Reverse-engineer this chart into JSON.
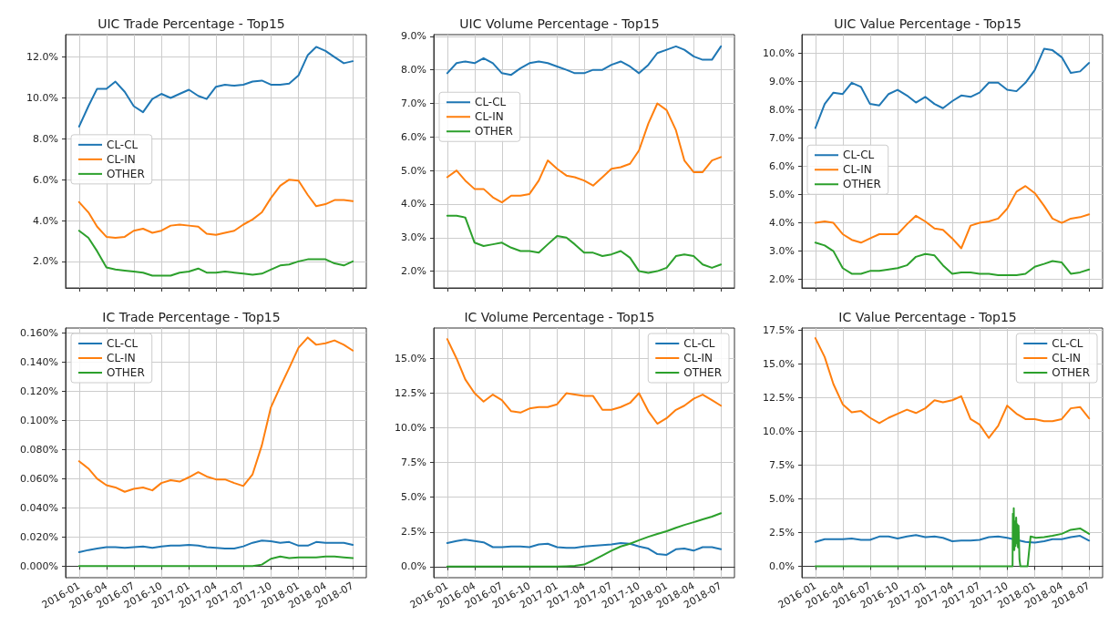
{
  "chart_data": [
    {
      "type": "line",
      "title": "UIC Trade Percentage - Top15",
      "x": [
        "2016-01",
        "2016-02",
        "2016-03",
        "2016-04",
        "2016-05",
        "2016-06",
        "2016-07",
        "2016-08",
        "2016-09",
        "2016-10",
        "2016-11",
        "2016-12",
        "2017-01",
        "2017-02",
        "2017-03",
        "2017-04",
        "2017-05",
        "2017-06",
        "2017-07",
        "2017-08",
        "2017-09",
        "2017-10",
        "2017-11",
        "2017-12",
        "2018-01",
        "2018-02",
        "2018-03",
        "2018-04",
        "2018-05",
        "2018-06",
        "2018-07"
      ],
      "xlim": [
        "2015-11-17",
        "2018-08-15"
      ],
      "xticks": [
        "2016-01",
        "2016-04",
        "2016-07",
        "2016-10",
        "2017-01",
        "2017-04",
        "2017-07",
        "2017-10",
        "2018-01",
        "2018-04",
        "2018-07"
      ],
      "ylim": [
        0.7,
        13.1
      ],
      "yticks": [
        {
          "value": 2,
          "label": "2.0%"
        },
        {
          "value": 4,
          "label": "4.0%"
        },
        {
          "value": 6,
          "label": "6.0%"
        },
        {
          "value": 8,
          "label": "8.0%"
        },
        {
          "value": 10,
          "label": "10.0%"
        },
        {
          "value": 12,
          "label": "12.0%"
        }
      ],
      "grid": true,
      "legend": "left",
      "tick_labels": "y",
      "series": [
        {
          "name": "CL-CL",
          "color": "#1f77b4",
          "values": [
            8.6,
            9.6,
            10.45,
            10.45,
            10.8,
            10.3,
            9.6,
            9.3,
            9.95,
            10.2,
            10.0,
            10.2,
            10.4,
            10.1,
            9.95,
            10.55,
            10.65,
            10.6,
            10.65,
            10.8,
            10.85,
            10.65,
            10.65,
            10.7,
            11.1,
            12.1,
            12.5,
            12.3,
            12.0,
            11.7,
            11.8
          ]
        },
        {
          "name": "CL-IN",
          "color": "#ff7f0e",
          "values": [
            4.9,
            4.4,
            3.7,
            3.2,
            3.15,
            3.2,
            3.5,
            3.6,
            3.4,
            3.5,
            3.75,
            3.8,
            3.75,
            3.7,
            3.35,
            3.3,
            3.4,
            3.5,
            3.8,
            4.05,
            4.4,
            5.1,
            5.7,
            6.0,
            5.95,
            5.25,
            4.7,
            4.8,
            5.0,
            5.0,
            4.95
          ]
        },
        {
          "name": "OTHER",
          "color": "#2ca02c",
          "values": [
            3.5,
            3.15,
            2.5,
            1.7,
            1.6,
            1.55,
            1.5,
            1.45,
            1.3,
            1.3,
            1.3,
            1.45,
            1.5,
            1.65,
            1.45,
            1.45,
            1.5,
            1.45,
            1.4,
            1.35,
            1.4,
            1.6,
            1.8,
            1.85,
            2.0,
            2.1,
            2.1,
            2.1,
            1.9,
            1.8,
            2.0
          ]
        }
      ]
    },
    {
      "type": "line",
      "title": "UIC Volume Percentage - Top15",
      "x": [
        "2016-01",
        "2016-02",
        "2016-03",
        "2016-04",
        "2016-05",
        "2016-06",
        "2016-07",
        "2016-08",
        "2016-09",
        "2016-10",
        "2016-11",
        "2016-12",
        "2017-01",
        "2017-02",
        "2017-03",
        "2017-04",
        "2017-05",
        "2017-06",
        "2017-07",
        "2017-08",
        "2017-09",
        "2017-10",
        "2017-11",
        "2017-12",
        "2018-01",
        "2018-02",
        "2018-03",
        "2018-04",
        "2018-05",
        "2018-06",
        "2018-07"
      ],
      "xlim": [
        "2015-11-17",
        "2018-08-15"
      ],
      "xticks": [
        "2016-01",
        "2016-04",
        "2016-07",
        "2016-10",
        "2017-01",
        "2017-04",
        "2017-07",
        "2017-10",
        "2018-01",
        "2018-04",
        "2018-07"
      ],
      "ylim": [
        1.5,
        9.05
      ],
      "yticks": [
        {
          "value": 2,
          "label": "2.0%"
        },
        {
          "value": 3,
          "label": "3.0%"
        },
        {
          "value": 4,
          "label": "4.0%"
        },
        {
          "value": 5,
          "label": "5.0%"
        },
        {
          "value": 6,
          "label": "6.0%"
        },
        {
          "value": 7,
          "label": "7.0%"
        },
        {
          "value": 8,
          "label": "8.0%"
        },
        {
          "value": 9,
          "label": "9.0%"
        }
      ],
      "grid": true,
      "legend": "left",
      "tick_labels": "y",
      "series": [
        {
          "name": "CL-CL",
          "color": "#1f77b4",
          "values": [
            7.9,
            8.2,
            8.25,
            8.2,
            8.35,
            8.2,
            7.9,
            7.85,
            8.05,
            8.2,
            8.25,
            8.2,
            8.1,
            8.0,
            7.9,
            7.9,
            8.0,
            8.0,
            8.15,
            8.25,
            8.1,
            7.9,
            8.15,
            8.5,
            8.6,
            8.7,
            8.6,
            8.4,
            8.3,
            8.3,
            8.7
          ]
        },
        {
          "name": "CL-IN",
          "color": "#ff7f0e",
          "values": [
            4.8,
            5.0,
            4.7,
            4.45,
            4.45,
            4.2,
            4.05,
            4.25,
            4.25,
            4.3,
            4.7,
            5.3,
            5.05,
            4.85,
            4.8,
            4.7,
            4.55,
            4.8,
            5.05,
            5.1,
            5.2,
            5.6,
            6.4,
            7.0,
            6.8,
            6.2,
            5.3,
            4.95,
            4.95,
            5.3,
            5.4
          ]
        },
        {
          "name": "OTHER",
          "color": "#2ca02c",
          "values": [
            3.65,
            3.65,
            3.6,
            2.85,
            2.75,
            2.8,
            2.85,
            2.7,
            2.6,
            2.6,
            2.55,
            2.8,
            3.05,
            3.0,
            2.8,
            2.55,
            2.55,
            2.45,
            2.5,
            2.6,
            2.4,
            2.0,
            1.95,
            2.0,
            2.1,
            2.45,
            2.5,
            2.45,
            2.2,
            2.1,
            2.2
          ]
        }
      ]
    },
    {
      "type": "line",
      "title": "UIC Value Percentage - Top15",
      "x": [
        "2016-01",
        "2016-02",
        "2016-03",
        "2016-04",
        "2016-05",
        "2016-06",
        "2016-07",
        "2016-08",
        "2016-09",
        "2016-10",
        "2016-11",
        "2016-12",
        "2017-01",
        "2017-02",
        "2017-03",
        "2017-04",
        "2017-05",
        "2017-06",
        "2017-07",
        "2017-08",
        "2017-09",
        "2017-10",
        "2017-11",
        "2017-12",
        "2018-01",
        "2018-02",
        "2018-03",
        "2018-04",
        "2018-05",
        "2018-06",
        "2018-07"
      ],
      "xlim": [
        "2015-11-17",
        "2018-08-15"
      ],
      "xticks": [
        "2016-01",
        "2016-04",
        "2016-07",
        "2016-10",
        "2017-01",
        "2017-04",
        "2017-07",
        "2017-10",
        "2018-01",
        "2018-04",
        "2018-07"
      ],
      "ylim": [
        1.7,
        10.65
      ],
      "yticks": [
        {
          "value": 2,
          "label": "2.0%"
        },
        {
          "value": 3,
          "label": "3.0%"
        },
        {
          "value": 4,
          "label": "4.0%"
        },
        {
          "value": 5,
          "label": "5.0%"
        },
        {
          "value": 6,
          "label": "6.0%"
        },
        {
          "value": 7,
          "label": "7.0%"
        },
        {
          "value": 8,
          "label": "8.0%"
        },
        {
          "value": 9,
          "label": "9.0%"
        },
        {
          "value": 10,
          "label": "10.0%"
        }
      ],
      "grid": true,
      "legend": "left",
      "tick_labels": "y",
      "series": [
        {
          "name": "CL-CL",
          "color": "#1f77b4",
          "values": [
            7.35,
            8.2,
            8.6,
            8.55,
            8.95,
            8.8,
            8.2,
            8.15,
            8.55,
            8.7,
            8.5,
            8.25,
            8.45,
            8.2,
            8.05,
            8.3,
            8.5,
            8.45,
            8.6,
            8.95,
            8.95,
            8.7,
            8.65,
            8.95,
            9.4,
            10.15,
            10.1,
            9.85,
            9.3,
            9.35,
            9.65
          ]
        },
        {
          "name": "CL-IN",
          "color": "#ff7f0e",
          "values": [
            4.0,
            4.05,
            4.0,
            3.6,
            3.4,
            3.3,
            3.45,
            3.6,
            3.6,
            3.6,
            3.95,
            4.25,
            4.05,
            3.8,
            3.75,
            3.45,
            3.1,
            3.9,
            4.0,
            4.05,
            4.15,
            4.5,
            5.1,
            5.3,
            5.05,
            4.6,
            4.15,
            4.0,
            4.15,
            4.2,
            4.3
          ]
        },
        {
          "name": "OTHER",
          "color": "#2ca02c",
          "values": [
            3.3,
            3.2,
            3.0,
            2.4,
            2.2,
            2.2,
            2.3,
            2.3,
            2.35,
            2.4,
            2.5,
            2.8,
            2.9,
            2.85,
            2.5,
            2.2,
            2.25,
            2.25,
            2.2,
            2.2,
            2.15,
            2.15,
            2.15,
            2.2,
            2.45,
            2.55,
            2.65,
            2.6,
            2.2,
            2.25,
            2.35
          ]
        }
      ]
    },
    {
      "type": "line",
      "title": "IC Trade Percentage - Top15",
      "x": [
        "2016-01",
        "2016-02",
        "2016-03",
        "2016-04",
        "2016-05",
        "2016-06",
        "2016-07",
        "2016-08",
        "2016-09",
        "2016-10",
        "2016-11",
        "2016-12",
        "2017-01",
        "2017-02",
        "2017-03",
        "2017-04",
        "2017-05",
        "2017-06",
        "2017-07",
        "2017-08",
        "2017-09",
        "2017-10",
        "2017-11",
        "2017-12",
        "2018-01",
        "2018-02",
        "2018-03",
        "2018-04",
        "2018-05",
        "2018-06",
        "2018-07"
      ],
      "xlim": [
        "2015-11-17",
        "2018-08-15"
      ],
      "xticks": [
        "2016-01",
        "2016-04",
        "2016-07",
        "2016-10",
        "2017-01",
        "2017-04",
        "2017-07",
        "2017-10",
        "2018-01",
        "2018-04",
        "2018-07"
      ],
      "ylim": [
        -0.008,
        0.1635
      ],
      "yticks": [
        {
          "value": 0,
          "label": "0.000%"
        },
        {
          "value": 0.02,
          "label": "0.020%"
        },
        {
          "value": 0.04,
          "label": "0.040%"
        },
        {
          "value": 0.06,
          "label": "0.060%"
        },
        {
          "value": 0.08,
          "label": "0.080%"
        },
        {
          "value": 0.1,
          "label": "0.100%"
        },
        {
          "value": 0.12,
          "label": "0.120%"
        },
        {
          "value": 0.14,
          "label": "0.140%"
        },
        {
          "value": 0.16,
          "label": "0.160%"
        }
      ],
      "grid": true,
      "legend": "top left",
      "series": [
        {
          "name": "CL-CL",
          "color": "#1f77b4",
          "values": [
            0.0095,
            0.011,
            0.012,
            0.013,
            0.013,
            0.0125,
            0.013,
            0.0135,
            0.0125,
            0.0135,
            0.014,
            0.014,
            0.0145,
            0.014,
            0.013,
            0.0125,
            0.012,
            0.012,
            0.0135,
            0.016,
            0.0175,
            0.017,
            0.016,
            0.0165,
            0.014,
            0.014,
            0.0165,
            0.016,
            0.016,
            0.016,
            0.0145
          ]
        },
        {
          "name": "CL-IN",
          "color": "#ff7f0e",
          "values": [
            0.072,
            0.067,
            0.06,
            0.0555,
            0.054,
            0.051,
            0.053,
            0.054,
            0.052,
            0.057,
            0.059,
            0.058,
            0.061,
            0.0645,
            0.0615,
            0.0595,
            0.0595,
            0.057,
            0.055,
            0.063,
            0.083,
            0.109,
            0.123,
            0.136,
            0.15,
            0.157,
            0.152,
            0.153,
            0.155,
            0.152,
            0.148
          ]
        },
        {
          "name": "OTHER",
          "color": "#2ca02c",
          "values": [
            0,
            0,
            0,
            0,
            0,
            0,
            0,
            0,
            0,
            0,
            0,
            0,
            0,
            0,
            0,
            0,
            0,
            0,
            0,
            0,
            0.001,
            0.005,
            0.0065,
            0.0055,
            0.006,
            0.006,
            0.006,
            0.0065,
            0.0065,
            0.006,
            0.0055
          ]
        }
      ]
    },
    {
      "type": "line",
      "title": "IC Volume Percentage - Top15",
      "x": [
        "2016-01",
        "2016-02",
        "2016-03",
        "2016-04",
        "2016-05",
        "2016-06",
        "2016-07",
        "2016-08",
        "2016-09",
        "2016-10",
        "2016-11",
        "2016-12",
        "2017-01",
        "2017-02",
        "2017-03",
        "2017-04",
        "2017-05",
        "2017-06",
        "2017-07",
        "2017-08",
        "2017-09",
        "2017-10",
        "2017-11",
        "2017-12",
        "2018-01",
        "2018-02",
        "2018-03",
        "2018-04",
        "2018-05",
        "2018-06",
        "2018-07"
      ],
      "xlim": [
        "2015-11-17",
        "2018-08-15"
      ],
      "xticks": [
        "2016-01",
        "2016-04",
        "2016-07",
        "2016-10",
        "2017-01",
        "2017-04",
        "2017-07",
        "2017-10",
        "2018-01",
        "2018-04",
        "2018-07"
      ],
      "ylim": [
        -0.8,
        17.2
      ],
      "yticks": [
        {
          "value": 0,
          "label": "0.0%"
        },
        {
          "value": 2.5,
          "label": "2.5%"
        },
        {
          "value": 5,
          "label": "5.0%"
        },
        {
          "value": 7.5,
          "label": "7.5%"
        },
        {
          "value": 10,
          "label": "10.0%"
        },
        {
          "value": 12.5,
          "label": "12.5%"
        },
        {
          "value": 15,
          "label": "15.0%"
        }
      ],
      "grid": true,
      "legend": "top right",
      "series": [
        {
          "name": "CL-CL",
          "color": "#1f77b4",
          "values": [
            1.7,
            1.85,
            1.95,
            1.85,
            1.75,
            1.4,
            1.4,
            1.45,
            1.45,
            1.4,
            1.6,
            1.65,
            1.4,
            1.35,
            1.35,
            1.45,
            1.5,
            1.55,
            1.6,
            1.7,
            1.65,
            1.45,
            1.3,
            0.9,
            0.85,
            1.25,
            1.3,
            1.15,
            1.4,
            1.4,
            1.25
          ]
        },
        {
          "name": "CL-IN",
          "color": "#ff7f0e",
          "values": [
            16.4,
            15.0,
            13.5,
            12.5,
            11.9,
            12.4,
            12.0,
            11.2,
            11.1,
            11.4,
            11.5,
            11.5,
            11.7,
            12.5,
            12.4,
            12.3,
            12.3,
            11.3,
            11.3,
            11.5,
            11.8,
            12.5,
            11.2,
            10.3,
            10.7,
            11.3,
            11.6,
            12.1,
            12.4,
            12.0,
            11.6
          ]
        },
        {
          "name": "OTHER",
          "color": "#2ca02c",
          "values": [
            0,
            0,
            0,
            0,
            0,
            0,
            0,
            0,
            0,
            0,
            0,
            0,
            0,
            0.02,
            0.05,
            0.15,
            0.45,
            0.8,
            1.15,
            1.45,
            1.65,
            1.9,
            2.15,
            2.35,
            2.55,
            2.8,
            3.0,
            3.2,
            3.4,
            3.6,
            3.85
          ]
        }
      ]
    },
    {
      "type": "line",
      "title": "IC Value Percentage - Top15",
      "x": [
        "2016-01",
        "2016-02",
        "2016-03",
        "2016-04",
        "2016-05",
        "2016-06",
        "2016-07",
        "2016-08",
        "2016-09",
        "2016-10",
        "2016-11",
        "2016-12",
        "2017-01",
        "2017-02",
        "2017-03",
        "2017-04",
        "2017-05",
        "2017-06",
        "2017-07",
        "2017-08",
        "2017-09",
        "2017-10",
        "2017-11",
        "2017-12",
        "2018-01",
        "2018-02",
        "2018-03",
        "2018-04",
        "2018-05",
        "2018-06",
        "2018-07"
      ],
      "xlim": [
        "2015-11-17",
        "2018-08-15"
      ],
      "xticks": [
        "2016-01",
        "2016-04",
        "2016-07",
        "2016-10",
        "2017-01",
        "2017-04",
        "2017-07",
        "2017-10",
        "2018-01",
        "2018-04",
        "2018-07"
      ],
      "ylim": [
        -0.85,
        17.65
      ],
      "yticks": [
        {
          "value": 0,
          "label": "0.0%"
        },
        {
          "value": 2.5,
          "label": "2.5%"
        },
        {
          "value": 5,
          "label": "5.0%"
        },
        {
          "value": 7.5,
          "label": "7.5%"
        },
        {
          "value": 10,
          "label": "10.0%"
        },
        {
          "value": 12.5,
          "label": "12.5%"
        },
        {
          "value": 15,
          "label": "15.0%"
        },
        {
          "value": 17.5,
          "label": "17.5%"
        }
      ],
      "grid": true,
      "legend": "top right",
      "series": [
        {
          "name": "CL-CL",
          "color": "#1f77b4",
          "values": [
            1.8,
            2.0,
            2.0,
            2.0,
            2.05,
            1.95,
            1.95,
            2.2,
            2.2,
            2.05,
            2.2,
            2.3,
            2.15,
            2.2,
            2.1,
            1.85,
            1.9,
            1.9,
            1.95,
            2.15,
            2.2,
            2.1,
            1.95,
            1.8,
            1.75,
            1.85,
            2.0,
            2.0,
            2.15,
            2.25,
            1.9
          ]
        },
        {
          "name": "CL-IN",
          "color": "#ff7f0e",
          "values": [
            16.9,
            15.5,
            13.5,
            12.0,
            11.4,
            11.5,
            11.0,
            10.6,
            11.0,
            11.3,
            11.6,
            11.35,
            11.7,
            12.3,
            12.15,
            12.3,
            12.6,
            10.9,
            10.5,
            9.5,
            10.4,
            11.9,
            11.3,
            10.9,
            10.9,
            10.75,
            10.75,
            10.9,
            11.7,
            11.8,
            10.95
          ]
        },
        {
          "name": "OTHER",
          "color": "#2ca02c",
          "x": [
            "2016-01",
            "2017-10-19",
            "2017-10-20",
            "2017-10-22",
            "2017-10-23",
            "2017-10-25",
            "2017-10-27",
            "2017-10-29",
            "2017-10-31",
            "2017-11-02",
            "2017-11-04",
            "2017-11-06",
            "2017-11-08",
            "2017-11-11",
            "2017-11-14",
            "2017-12-08",
            "2017-12-18",
            "2018-01-05",
            "2018-02-01",
            "2018-03-01",
            "2018-04-01",
            "2018-05-01",
            "2018-06-01",
            "2018-07-01"
          ],
          "values": [
            0,
            0,
            3.9,
            1.4,
            4.3,
            1.2,
            3.3,
            1.5,
            3.6,
            1.7,
            3.1,
            1.4,
            3.0,
            0.5,
            0,
            0,
            2.2,
            2.1,
            2.15,
            2.25,
            2.4,
            2.7,
            2.8,
            2.4
          ]
        }
      ]
    }
  ]
}
